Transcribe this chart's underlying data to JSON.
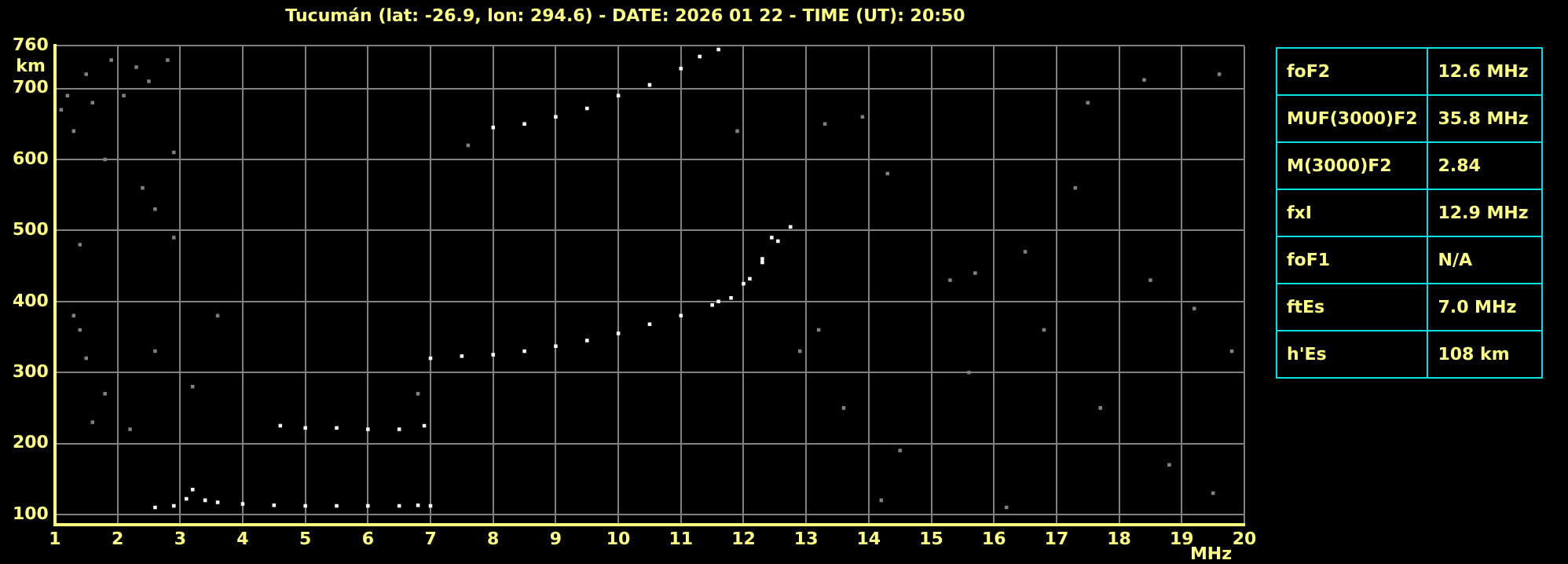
{
  "chart_data": [
    {
      "type": "scatter",
      "title": "Tucumán (lat: -26.9, lon: 294.6) - DATE: 2026 01 22 - TIME (UT): 20:50",
      "xlabel": "MHz",
      "ylabel": "km",
      "xlim": [
        1,
        20
      ],
      "ylim": [
        86,
        760
      ],
      "xticks": [
        1,
        2,
        3,
        4,
        5,
        6,
        7,
        8,
        9,
        10,
        11,
        12,
        13,
        14,
        15,
        16,
        17,
        18,
        19,
        20
      ],
      "yticks": [
        100,
        200,
        300,
        400,
        500,
        600,
        700,
        760
      ],
      "grid": true,
      "legend": false,
      "marker": "square",
      "series": [
        {
          "color": "#ffffff",
          "x": [
            2.6,
            2.9,
            3.1,
            3.2,
            3.4,
            3.6,
            4,
            4.5,
            5,
            5.5,
            6,
            6.5,
            6.8,
            7.0
          ],
          "values": [
            110,
            112,
            122,
            135,
            120,
            117,
            115,
            113,
            112,
            112,
            112,
            112,
            113,
            112
          ]
        },
        {
          "color": "#ffffff",
          "x": [
            4.6,
            5,
            5.5,
            6,
            6.5,
            6.9
          ],
          "values": [
            225,
            222,
            222,
            220,
            220,
            225
          ]
        },
        {
          "color": "#ffffff",
          "x": [
            7.0,
            7.5,
            8,
            8.5,
            9,
            9.5,
            10,
            10.5,
            11,
            11.5,
            11.8,
            12.1,
            12.3,
            12.45
          ],
          "values": [
            320,
            323,
            325,
            330,
            337,
            345,
            355,
            368,
            380,
            395,
            405,
            432,
            460,
            490
          ]
        },
        {
          "color": "#ffffff",
          "x": [
            11.6,
            12,
            12.3,
            12.55,
            12.75
          ],
          "values": [
            400,
            425,
            455,
            485,
            505
          ]
        },
        {
          "color": "#ffffff",
          "x": [
            8,
            8.5,
            9,
            9.5,
            10,
            10.5,
            11,
            11.3,
            11.6
          ],
          "values": [
            645,
            650,
            660,
            672,
            690,
            705,
            728,
            745,
            755
          ]
        },
        {
          "color": "#808080",
          "x": [
            1.1,
            1.2,
            1.3,
            1.5,
            1.6,
            1.9,
            2.1,
            2.3,
            2.5,
            2.8,
            2.9,
            1.8,
            2.4,
            2.6,
            2.9,
            1.4,
            1.3,
            1.4,
            1.5,
            1.6,
            1.8,
            2.2,
            2.6,
            3.2,
            3.6,
            6.8,
            7.6,
            11.9,
            13.3,
            13.9,
            14.3,
            15.3,
            15.7,
            16.5,
            17.3,
            18.5,
            19.2,
            19.8,
            13.6,
            14.5,
            15.6,
            16.8,
            17.7,
            18.8,
            19.5,
            14.2,
            16.2,
            12.9,
            13.2,
            17.5,
            18.4,
            19.6
          ],
          "values": [
            670,
            690,
            640,
            720,
            680,
            740,
            690,
            730,
            710,
            740,
            610,
            600,
            560,
            530,
            490,
            480,
            380,
            360,
            320,
            230,
            270,
            220,
            330,
            280,
            380,
            270,
            620,
            640,
            650,
            660,
            580,
            430,
            440,
            470,
            560,
            430,
            390,
            330,
            250,
            190,
            300,
            360,
            250,
            170,
            130,
            120,
            110,
            330,
            360,
            680,
            712,
            720
          ]
        }
      ]
    },
    {
      "type": "other",
      "annotations": [
        "foF2",
        "12.6 MHz",
        "MUF(3000)F2",
        "35.8 MHz",
        "M(3000)F2",
        "2.84",
        "fxI",
        "12.9 MHz",
        "foF1",
        "N/A",
        "ftEs",
        "7.0 MHz",
        "h'Es",
        "108 km"
      ]
    }
  ]
}
